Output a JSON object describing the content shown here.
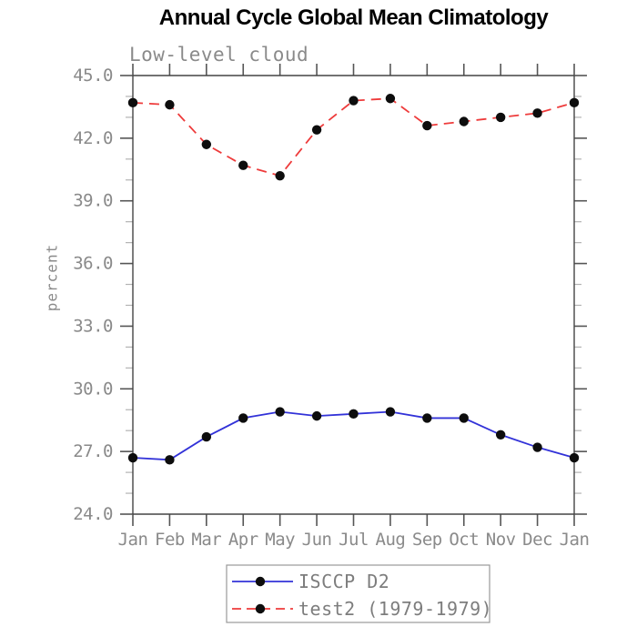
{
  "chart": {
    "title": "Annual Cycle Global Mean Climatology",
    "subtitle": "Low-level cloud",
    "ylabel": "percent"
  },
  "chart_data": {
    "type": "line",
    "title": "Annual Cycle Global Mean Climatology",
    "subtitle": "Low-level cloud",
    "xlabel": "",
    "ylabel": "percent",
    "categories": [
      "Jan",
      "Feb",
      "Mar",
      "Apr",
      "May",
      "Jun",
      "Jul",
      "Aug",
      "Sep",
      "Oct",
      "Nov",
      "Dec",
      "Jan"
    ],
    "series": [
      {
        "name": "ISCCP D2",
        "color": "#3232d8",
        "line_style": "solid",
        "marker": "filled-circle",
        "marker_color": "#0d0d0d",
        "values": [
          26.7,
          26.6,
          27.7,
          28.6,
          28.9,
          28.7,
          28.8,
          28.9,
          28.6,
          28.6,
          27.8,
          27.2,
          26.7
        ]
      },
      {
        "name": "test2 (1979-1979)",
        "color": "#ee3b3b",
        "line_style": "dashed",
        "marker": "filled-circle",
        "marker_color": "#0d0d0d",
        "values": [
          43.7,
          43.6,
          41.7,
          40.7,
          40.2,
          42.4,
          43.8,
          43.9,
          42.6,
          42.8,
          43.0,
          43.2,
          43.7
        ]
      }
    ],
    "ylim": [
      24.0,
      45.0
    ],
    "yticks": [
      24.0,
      27.0,
      30.0,
      33.0,
      36.0,
      39.0,
      42.0,
      45.0
    ],
    "ytick_labels": [
      "24.0",
      "27.0",
      "30.0",
      "33.0",
      "36.0",
      "39.0",
      "42.0",
      "45.0"
    ],
    "y_minor_tick_interval": 1.0,
    "grid": false,
    "legend_position": "bottom-center",
    "colors": {
      "frame": "#444444",
      "major_tick": "#555555",
      "minor_tick": "#b3b3b3",
      "tick_label": "#8a8a8a",
      "legend_border": "#999999",
      "legend_text": "#7d7d7d",
      "title": "#000000",
      "subtitle": "#8a8a8a"
    }
  }
}
